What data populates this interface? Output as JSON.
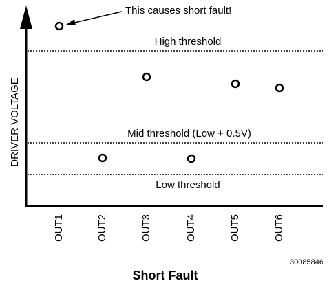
{
  "annotation": "This causes short fault!",
  "y_axis_label": "DRIVER VOLTAGE",
  "thresholds": [
    "High threshold",
    "Mid threshold (Low + 0.5V)",
    "Low threshold"
  ],
  "categories": [
    "OUT1",
    "OUT2",
    "OUT3",
    "OUT4",
    "OUT5",
    "OUT6"
  ],
  "figure_id": "30085846",
  "title": "Short Fault"
}
